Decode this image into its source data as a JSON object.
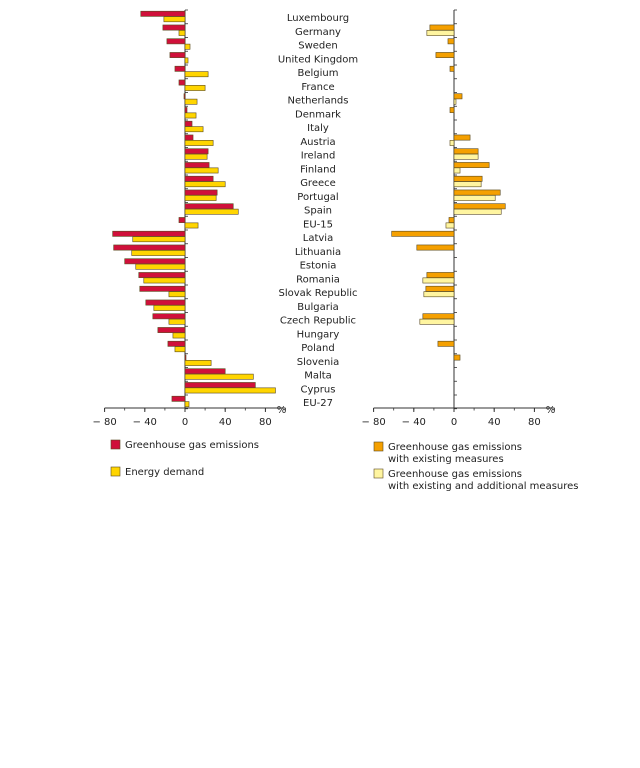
{
  "colors": {
    "ghg": "#d0103a",
    "energy": "#ffd500",
    "ghg_existing": "#f5a000",
    "ghg_additional": "#fff5a0",
    "bar_stroke": "#5a4a20",
    "axis": "#333333"
  },
  "chart_data": [
    {
      "type": "bar",
      "orientation": "horizontal",
      "title": "",
      "xlabel": "%",
      "xlim": [
        -80,
        100
      ],
      "xticks": [
        -80,
        -40,
        0,
        40,
        80
      ],
      "categories": [
        "Luxembourg",
        "Germany",
        "Sweden",
        "United Kingdom",
        "Belgium",
        "France",
        "Netherlands",
        "Denmark",
        "Italy",
        "Austria",
        "Ireland",
        "Finland",
        "Greece",
        "Portugal",
        "Spain",
        "EU-15",
        "Latvia",
        "Lithuania",
        "Estonia",
        "Romania",
        "Slovak Republic",
        "Bulgaria",
        "Czech Republic",
        "Hungary",
        "Poland",
        "Slovenia",
        "Malta",
        "Cyprus",
        "EU-27"
      ],
      "series": [
        {
          "name": "Greenhouse gas emissions",
          "color": "#d0103a",
          "values": [
            -44,
            -22,
            -18,
            -15,
            -10,
            -6,
            -1,
            2,
            7,
            8,
            23,
            24,
            28,
            32,
            48,
            -6,
            -72,
            -71,
            -60,
            -46,
            -45,
            -39,
            -32,
            -27,
            -17,
            1,
            40,
            70,
            -13
          ]
        },
        {
          "name": "Energy demand",
          "color": "#ffd500",
          "values": [
            -21,
            -6,
            5,
            3,
            23,
            20,
            12,
            11,
            18,
            28,
            22,
            33,
            40,
            31,
            53,
            13,
            -52,
            -53,
            -49,
            -41,
            -16,
            -31,
            -16,
            -12,
            -10,
            26,
            68,
            90,
            4
          ]
        }
      ]
    },
    {
      "type": "bar",
      "orientation": "horizontal",
      "title": "",
      "xlabel": "%",
      "xlim": [
        -80,
        100
      ],
      "xticks": [
        -80,
        -40,
        0,
        40,
        80
      ],
      "categories": [
        "Luxembourg",
        "Germany",
        "Sweden",
        "United Kingdom",
        "Belgium",
        "France",
        "Netherlands",
        "Denmark",
        "Italy",
        "Austria",
        "Ireland",
        "Finland",
        "Greece",
        "Portugal",
        "Spain",
        "EU-15",
        "Latvia",
        "Lithuania",
        "Estonia",
        "Romania",
        "Slovak Republic",
        "Bulgaria",
        "Czech Republic",
        "Hungary",
        "Poland",
        "Slovenia",
        "Malta",
        "Cyprus",
        "EU-27"
      ],
      "series": [
        {
          "name": "Greenhouse gas emissions with existing measures",
          "color": "#f5a000",
          "values": [
            null,
            -24,
            -6,
            -18,
            -4,
            null,
            8,
            -4,
            null,
            16,
            24,
            35,
            28,
            46,
            51,
            -5,
            -62,
            -37,
            null,
            -27,
            -28,
            null,
            -31,
            null,
            -16,
            6,
            null,
            null,
            null
          ]
        },
        {
          "name": "Greenhouse gas emissions with existing and additional measures",
          "color": "#fff5a0",
          "values": [
            null,
            -27,
            null,
            null,
            null,
            null,
            2,
            null,
            null,
            -4,
            24,
            6,
            27,
            41,
            47,
            -8,
            null,
            null,
            null,
            -31,
            -30,
            null,
            -34,
            null,
            null,
            null,
            null,
            null,
            null
          ]
        }
      ]
    }
  ],
  "legend_left": [
    {
      "label": "Greenhouse gas emissions",
      "color": "#d0103a"
    },
    {
      "label": "Energy demand",
      "color": "#ffd500"
    }
  ],
  "legend_right": [
    {
      "label_line1": "Greenhouse gas emissions",
      "label_line2": "with existing measures",
      "color": "#f5a000"
    },
    {
      "label_line1": "Greenhouse gas emissions",
      "label_line2": "with existing and additional measures",
      "color": "#fff5a0"
    }
  ]
}
